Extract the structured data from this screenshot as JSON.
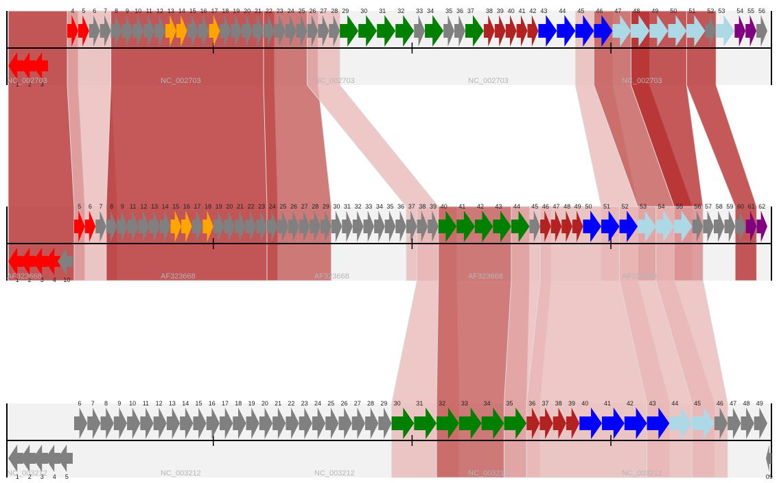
{
  "colors": {
    "red": "#ff0000",
    "grey": "#808080",
    "orange": "#ffa500",
    "green": "#008000",
    "darkred": "#b22222",
    "blue": "#0000ff",
    "lightblue": "#add8e6",
    "purple": "#800080",
    "track_bg": "#f2f2f2",
    "axis": "#000000"
  },
  "tracks": [
    {
      "name": "NC_002703",
      "labels": [
        "NC_002703",
        "NC_002703",
        "NC_002703",
        "NC_002703",
        "NC_002703"
      ],
      "genes": [
        {
          "n": "1",
          "c": "red",
          "s": -1
        },
        {
          "n": "2",
          "c": "red",
          "s": -1
        },
        {
          "n": "3",
          "c": "red",
          "s": -1
        },
        {
          "n": "4",
          "c": "red",
          "s": 1
        },
        {
          "n": "5",
          "c": "red",
          "s": 1
        },
        {
          "n": "6",
          "c": "grey",
          "s": 1
        },
        {
          "n": "7",
          "c": "grey",
          "s": 1
        },
        {
          "n": "8",
          "c": "grey",
          "s": 1
        },
        {
          "n": "9",
          "c": "grey",
          "s": 1
        },
        {
          "n": "10",
          "c": "grey",
          "s": 1
        },
        {
          "n": "11",
          "c": "grey",
          "s": 1
        },
        {
          "n": "12",
          "c": "grey",
          "s": 1
        },
        {
          "n": "13",
          "c": "orange",
          "s": 1
        },
        {
          "n": "14",
          "c": "orange",
          "s": 1
        },
        {
          "n": "15",
          "c": "grey",
          "s": 1
        },
        {
          "n": "16",
          "c": "grey",
          "s": 1
        },
        {
          "n": "17",
          "c": "orange",
          "s": 1
        },
        {
          "n": "18",
          "c": "grey",
          "s": 1
        },
        {
          "n": "19",
          "c": "grey",
          "s": 1
        },
        {
          "n": "20",
          "c": "grey",
          "s": 1
        },
        {
          "n": "21",
          "c": "grey",
          "s": 1
        },
        {
          "n": "22",
          "c": "grey",
          "s": 1
        },
        {
          "n": "23",
          "c": "grey",
          "s": 1
        },
        {
          "n": "24",
          "c": "grey",
          "s": 1
        },
        {
          "n": "25",
          "c": "grey",
          "s": 1
        },
        {
          "n": "26",
          "c": "grey",
          "s": 1
        },
        {
          "n": "27",
          "c": "grey",
          "s": 1
        },
        {
          "n": "28",
          "c": "grey",
          "s": 1
        },
        {
          "n": "29",
          "c": "green",
          "s": 1
        },
        {
          "n": "30",
          "c": "green",
          "s": 1
        },
        {
          "n": "31",
          "c": "green",
          "s": 1
        },
        {
          "n": "32",
          "c": "green",
          "s": 1
        },
        {
          "n": "33",
          "c": "grey",
          "s": 1
        },
        {
          "n": "34",
          "c": "green",
          "s": 1
        },
        {
          "n": "35",
          "c": "grey",
          "s": 1
        },
        {
          "n": "36",
          "c": "grey",
          "s": 1
        },
        {
          "n": "37",
          "c": "green",
          "s": 1
        },
        {
          "n": "38",
          "c": "darkred",
          "s": 1
        },
        {
          "n": "39",
          "c": "darkred",
          "s": 1
        },
        {
          "n": "40",
          "c": "darkred",
          "s": 1
        },
        {
          "n": "41",
          "c": "darkred",
          "s": 1
        },
        {
          "n": "42",
          "c": "darkred",
          "s": 1
        },
        {
          "n": "43",
          "c": "blue",
          "s": 1
        },
        {
          "n": "44",
          "c": "blue",
          "s": 1
        },
        {
          "n": "45",
          "c": "blue",
          "s": 1
        },
        {
          "n": "46",
          "c": "blue",
          "s": 1
        },
        {
          "n": "47",
          "c": "lightblue",
          "s": 1
        },
        {
          "n": "48",
          "c": "lightblue",
          "s": 1
        },
        {
          "n": "49",
          "c": "lightblue",
          "s": 1
        },
        {
          "n": "50",
          "c": "lightblue",
          "s": 1
        },
        {
          "n": "51",
          "c": "lightblue",
          "s": 1
        },
        {
          "n": "52",
          "c": "grey",
          "s": 1
        },
        {
          "n": "53",
          "c": "lightblue",
          "s": 1
        },
        {
          "n": "54",
          "c": "purple",
          "s": 1
        },
        {
          "n": "55",
          "c": "purple",
          "s": 1
        },
        {
          "n": "56",
          "c": "grey",
          "s": 1
        }
      ]
    },
    {
      "name": "AF323668",
      "labels": [
        "AF323668",
        "AF323668",
        "AF323668",
        "AF323668",
        "AF323668"
      ],
      "genes": [
        {
          "n": "1",
          "c": "red",
          "s": -1
        },
        {
          "n": "2",
          "c": "red",
          "s": -1
        },
        {
          "n": "3",
          "c": "red",
          "s": -1
        },
        {
          "n": "4",
          "c": "red",
          "s": -1
        },
        {
          "n": "5",
          "c": "red",
          "s": 1
        },
        {
          "n": "6",
          "c": "red",
          "s": 1
        },
        {
          "n": "7",
          "c": "grey",
          "s": 1
        },
        {
          "n": "8",
          "c": "grey",
          "s": 1
        },
        {
          "n": "9",
          "c": "grey",
          "s": 1
        },
        {
          "n": "10",
          "c": "grey",
          "s": -1
        },
        {
          "n": "11",
          "c": "grey",
          "s": 1
        },
        {
          "n": "12",
          "c": "grey",
          "s": 1
        },
        {
          "n": "13",
          "c": "grey",
          "s": 1
        },
        {
          "n": "14",
          "c": "grey",
          "s": 1
        },
        {
          "n": "15",
          "c": "orange",
          "s": 1
        },
        {
          "n": "16",
          "c": "orange",
          "s": 1
        },
        {
          "n": "17",
          "c": "grey",
          "s": 1
        },
        {
          "n": "18",
          "c": "orange",
          "s": 1
        },
        {
          "n": "19",
          "c": "grey",
          "s": 1
        },
        {
          "n": "20",
          "c": "grey",
          "s": 1
        },
        {
          "n": "21",
          "c": "grey",
          "s": 1
        },
        {
          "n": "22",
          "c": "grey",
          "s": 1
        },
        {
          "n": "23",
          "c": "grey",
          "s": 1
        },
        {
          "n": "24",
          "c": "grey",
          "s": 1
        },
        {
          "n": "25",
          "c": "grey",
          "s": 1
        },
        {
          "n": "26",
          "c": "grey",
          "s": 1
        },
        {
          "n": "27",
          "c": "grey",
          "s": 1
        },
        {
          "n": "28",
          "c": "grey",
          "s": 1
        },
        {
          "n": "29",
          "c": "grey",
          "s": 1
        },
        {
          "n": "30",
          "c": "grey",
          "s": 1
        },
        {
          "n": "31",
          "c": "grey",
          "s": 1
        },
        {
          "n": "32",
          "c": "grey",
          "s": 1
        },
        {
          "n": "33",
          "c": "grey",
          "s": 1
        },
        {
          "n": "34",
          "c": "grey",
          "s": 1
        },
        {
          "n": "35",
          "c": "grey",
          "s": 1
        },
        {
          "n": "36",
          "c": "grey",
          "s": 1
        },
        {
          "n": "37",
          "c": "grey",
          "s": 1
        },
        {
          "n": "38",
          "c": "grey",
          "s": 1
        },
        {
          "n": "39",
          "c": "grey",
          "s": 1
        },
        {
          "n": "40",
          "c": "green",
          "s": 1
        },
        {
          "n": "41",
          "c": "green",
          "s": 1
        },
        {
          "n": "42",
          "c": "green",
          "s": 1
        },
        {
          "n": "43",
          "c": "green",
          "s": 1
        },
        {
          "n": "44",
          "c": "green",
          "s": 1
        },
        {
          "n": "45",
          "c": "grey",
          "s": 1
        },
        {
          "n": "46",
          "c": "darkred",
          "s": 1
        },
        {
          "n": "47",
          "c": "darkred",
          "s": 1
        },
        {
          "n": "48",
          "c": "darkred",
          "s": 1
        },
        {
          "n": "49",
          "c": "darkred",
          "s": 1
        },
        {
          "n": "50",
          "c": "blue",
          "s": 1
        },
        {
          "n": "51",
          "c": "blue",
          "s": 1
        },
        {
          "n": "52",
          "c": "blue",
          "s": 1
        },
        {
          "n": "53",
          "c": "lightblue",
          "s": 1
        },
        {
          "n": "54",
          "c": "lightblue",
          "s": 1
        },
        {
          "n": "55",
          "c": "lightblue",
          "s": 1
        },
        {
          "n": "56",
          "c": "grey",
          "s": 1
        },
        {
          "n": "57",
          "c": "grey",
          "s": 1
        },
        {
          "n": "58",
          "c": "grey",
          "s": 1
        },
        {
          "n": "59",
          "c": "grey",
          "s": 1
        },
        {
          "n": "60",
          "c": "grey",
          "s": 1
        },
        {
          "n": "61",
          "c": "purple",
          "s": 1
        },
        {
          "n": "62",
          "c": "purple",
          "s": 1
        }
      ]
    },
    {
      "name": "NC_003212",
      "labels": [
        "NC_003212",
        "NC_003212",
        "NC_003212",
        "NC_003212",
        "NC_003212"
      ],
      "genes": [
        {
          "n": "1",
          "c": "grey",
          "s": -1
        },
        {
          "n": "2",
          "c": "grey",
          "s": -1
        },
        {
          "n": "3",
          "c": "grey",
          "s": -1
        },
        {
          "n": "4",
          "c": "grey",
          "s": -1
        },
        {
          "n": "5",
          "c": "grey",
          "s": -1
        },
        {
          "n": "6",
          "c": "grey",
          "s": 1
        },
        {
          "n": "7",
          "c": "grey",
          "s": 1
        },
        {
          "n": "8",
          "c": "grey",
          "s": 1
        },
        {
          "n": "9",
          "c": "grey",
          "s": 1
        },
        {
          "n": "10",
          "c": "grey",
          "s": 1
        },
        {
          "n": "11",
          "c": "grey",
          "s": 1
        },
        {
          "n": "12",
          "c": "grey",
          "s": 1
        },
        {
          "n": "13",
          "c": "grey",
          "s": 1
        },
        {
          "n": "14",
          "c": "grey",
          "s": 1
        },
        {
          "n": "15",
          "c": "grey",
          "s": 1
        },
        {
          "n": "16",
          "c": "grey",
          "s": 1
        },
        {
          "n": "17",
          "c": "grey",
          "s": 1
        },
        {
          "n": "18",
          "c": "grey",
          "s": 1
        },
        {
          "n": "19",
          "c": "grey",
          "s": 1
        },
        {
          "n": "20",
          "c": "grey",
          "s": 1
        },
        {
          "n": "21",
          "c": "grey",
          "s": 1
        },
        {
          "n": "22",
          "c": "grey",
          "s": 1
        },
        {
          "n": "23",
          "c": "grey",
          "s": 1
        },
        {
          "n": "24",
          "c": "grey",
          "s": 1
        },
        {
          "n": "25",
          "c": "grey",
          "s": 1
        },
        {
          "n": "26",
          "c": "grey",
          "s": 1
        },
        {
          "n": "27",
          "c": "grey",
          "s": 1
        },
        {
          "n": "28",
          "c": "grey",
          "s": 1
        },
        {
          "n": "29",
          "c": "grey",
          "s": 1
        },
        {
          "n": "30",
          "c": "green",
          "s": 1
        },
        {
          "n": "31",
          "c": "green",
          "s": 1
        },
        {
          "n": "32",
          "c": "green",
          "s": 1
        },
        {
          "n": "33",
          "c": "green",
          "s": 1
        },
        {
          "n": "34",
          "c": "green",
          "s": 1
        },
        {
          "n": "35",
          "c": "green",
          "s": 1
        },
        {
          "n": "36",
          "c": "darkred",
          "s": 1
        },
        {
          "n": "37",
          "c": "darkred",
          "s": 1
        },
        {
          "n": "38",
          "c": "darkred",
          "s": 1
        },
        {
          "n": "39",
          "c": "darkred",
          "s": 1
        },
        {
          "n": "40",
          "c": "blue",
          "s": 1
        },
        {
          "n": "41",
          "c": "blue",
          "s": 1
        },
        {
          "n": "42",
          "c": "blue",
          "s": 1
        },
        {
          "n": "43",
          "c": "blue",
          "s": 1
        },
        {
          "n": "44",
          "c": "lightblue",
          "s": 1
        },
        {
          "n": "45",
          "c": "lightblue",
          "s": 1
        },
        {
          "n": "46",
          "c": "grey",
          "s": 1
        },
        {
          "n": "47",
          "c": "grey",
          "s": 1
        },
        {
          "n": "48",
          "c": "grey",
          "s": 1
        },
        {
          "n": "49",
          "c": "grey",
          "s": 1
        },
        {
          "n": "09",
          "c": "grey",
          "s": -1
        }
      ]
    }
  ],
  "links": [
    {
      "from": 0,
      "to": 1,
      "a": [
        1,
        4
      ],
      "b": [
        1,
        5
      ],
      "shade": "dark"
    },
    {
      "from": 0,
      "to": 1,
      "a": [
        4,
        7
      ],
      "b": [
        5,
        8
      ],
      "shade": "light"
    },
    {
      "from": 0,
      "to": 1,
      "a": [
        8,
        22
      ],
      "b": [
        8,
        24
      ],
      "shade": "dark"
    },
    {
      "from": 0,
      "to": 1,
      "a": [
        22,
        26
      ],
      "b": [
        24,
        29
      ],
      "shade": "mid"
    },
    {
      "from": 0,
      "to": 1,
      "a": [
        26,
        28
      ],
      "b": [
        37,
        39
      ],
      "shade": "light"
    },
    {
      "from": 0,
      "to": 1,
      "a": [
        45,
        46
      ],
      "b": [
        51,
        52
      ],
      "shade": "light"
    },
    {
      "from": 0,
      "to": 1,
      "a": [
        46,
        48
      ],
      "b": [
        53,
        55
      ],
      "shade": "mid"
    },
    {
      "from": 0,
      "to": 1,
      "a": [
        48,
        50
      ],
      "b": [
        55,
        56
      ],
      "shade": "dark"
    },
    {
      "from": 0,
      "to": 1,
      "a": [
        51,
        52
      ],
      "b": [
        60,
        61
      ],
      "shade": "dark"
    },
    {
      "from": 1,
      "to": 2,
      "a": [
        38,
        40
      ],
      "b": [
        30,
        32
      ],
      "shade": "light"
    },
    {
      "from": 1,
      "to": 2,
      "a": [
        40,
        44
      ],
      "b": [
        32,
        35
      ],
      "shade": "mid"
    },
    {
      "from": 1,
      "to": 2,
      "a": [
        44,
        46
      ],
      "b": [
        35,
        36
      ],
      "shade": "light"
    },
    {
      "from": 1,
      "to": 2,
      "a": [
        46,
        52
      ],
      "b": [
        36,
        43
      ],
      "shade": "light"
    },
    {
      "from": 1,
      "to": 2,
      "a": [
        52,
        54
      ],
      "b": [
        43,
        45
      ],
      "shade": "light"
    },
    {
      "from": 1,
      "to": 2,
      "a": [
        54,
        56
      ],
      "b": [
        45,
        46
      ],
      "shade": "light"
    }
  ]
}
